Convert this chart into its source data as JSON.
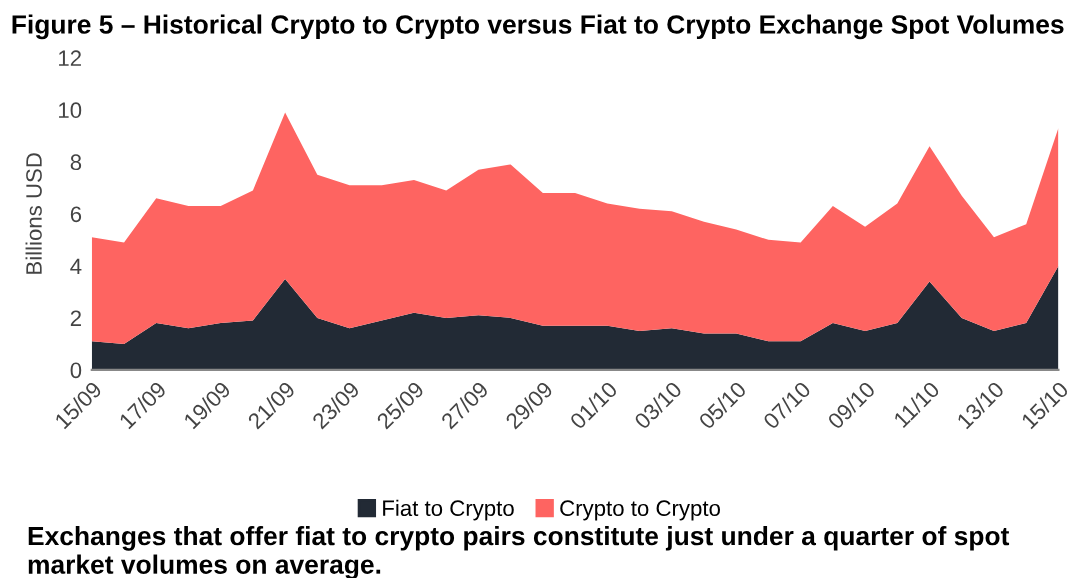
{
  "chart_data": {
    "type": "area",
    "stacked": true,
    "title": "Figure 5 – Historical Crypto to Crypto versus Fiat to Crypto Exchange Spot Volumes",
    "ylabel": "Billions USD",
    "categories": [
      "15/09",
      null,
      "17/09",
      null,
      "19/09",
      null,
      "21/09",
      null,
      "23/09",
      null,
      "25/09",
      null,
      "27/09",
      null,
      "29/09",
      null,
      "01/10",
      null,
      "03/10",
      null,
      "05/10",
      null,
      "07/10",
      null,
      "09/10",
      null,
      "11/10",
      null,
      "13/10",
      null,
      "15/10"
    ],
    "series": [
      {
        "name": "Fiat to Crypto",
        "color": "#222a35",
        "values": [
          1.1,
          1.0,
          1.8,
          1.6,
          1.8,
          1.9,
          3.5,
          2.0,
          1.6,
          1.9,
          2.2,
          2.0,
          2.1,
          2.0,
          1.7,
          1.7,
          1.7,
          1.5,
          1.6,
          1.4,
          1.4,
          1.1,
          1.1,
          1.8,
          1.5,
          1.8,
          3.4,
          2.0,
          1.5,
          1.8,
          4.0
        ]
      },
      {
        "name": "Crypto to Crypto",
        "color": "#fe6461",
        "values": [
          4.0,
          3.9,
          4.8,
          4.7,
          4.5,
          5.0,
          6.4,
          5.5,
          5.5,
          5.2,
          5.1,
          4.9,
          5.6,
          5.9,
          5.1,
          5.1,
          4.7,
          4.7,
          4.5,
          4.3,
          4.0,
          3.9,
          3.8,
          4.5,
          4.0,
          4.6,
          5.2,
          4.7,
          3.6,
          3.8,
          5.3
        ]
      }
    ],
    "ylim": [
      0,
      12
    ],
    "yticks": [
      0,
      2,
      4,
      6,
      8,
      10,
      12
    ],
    "grid": false,
    "legend": "bottom",
    "annotations": [
      "Exchanges that offer fiat to crypto pairs constitute just under a quarter of spot market volumes on average."
    ]
  }
}
